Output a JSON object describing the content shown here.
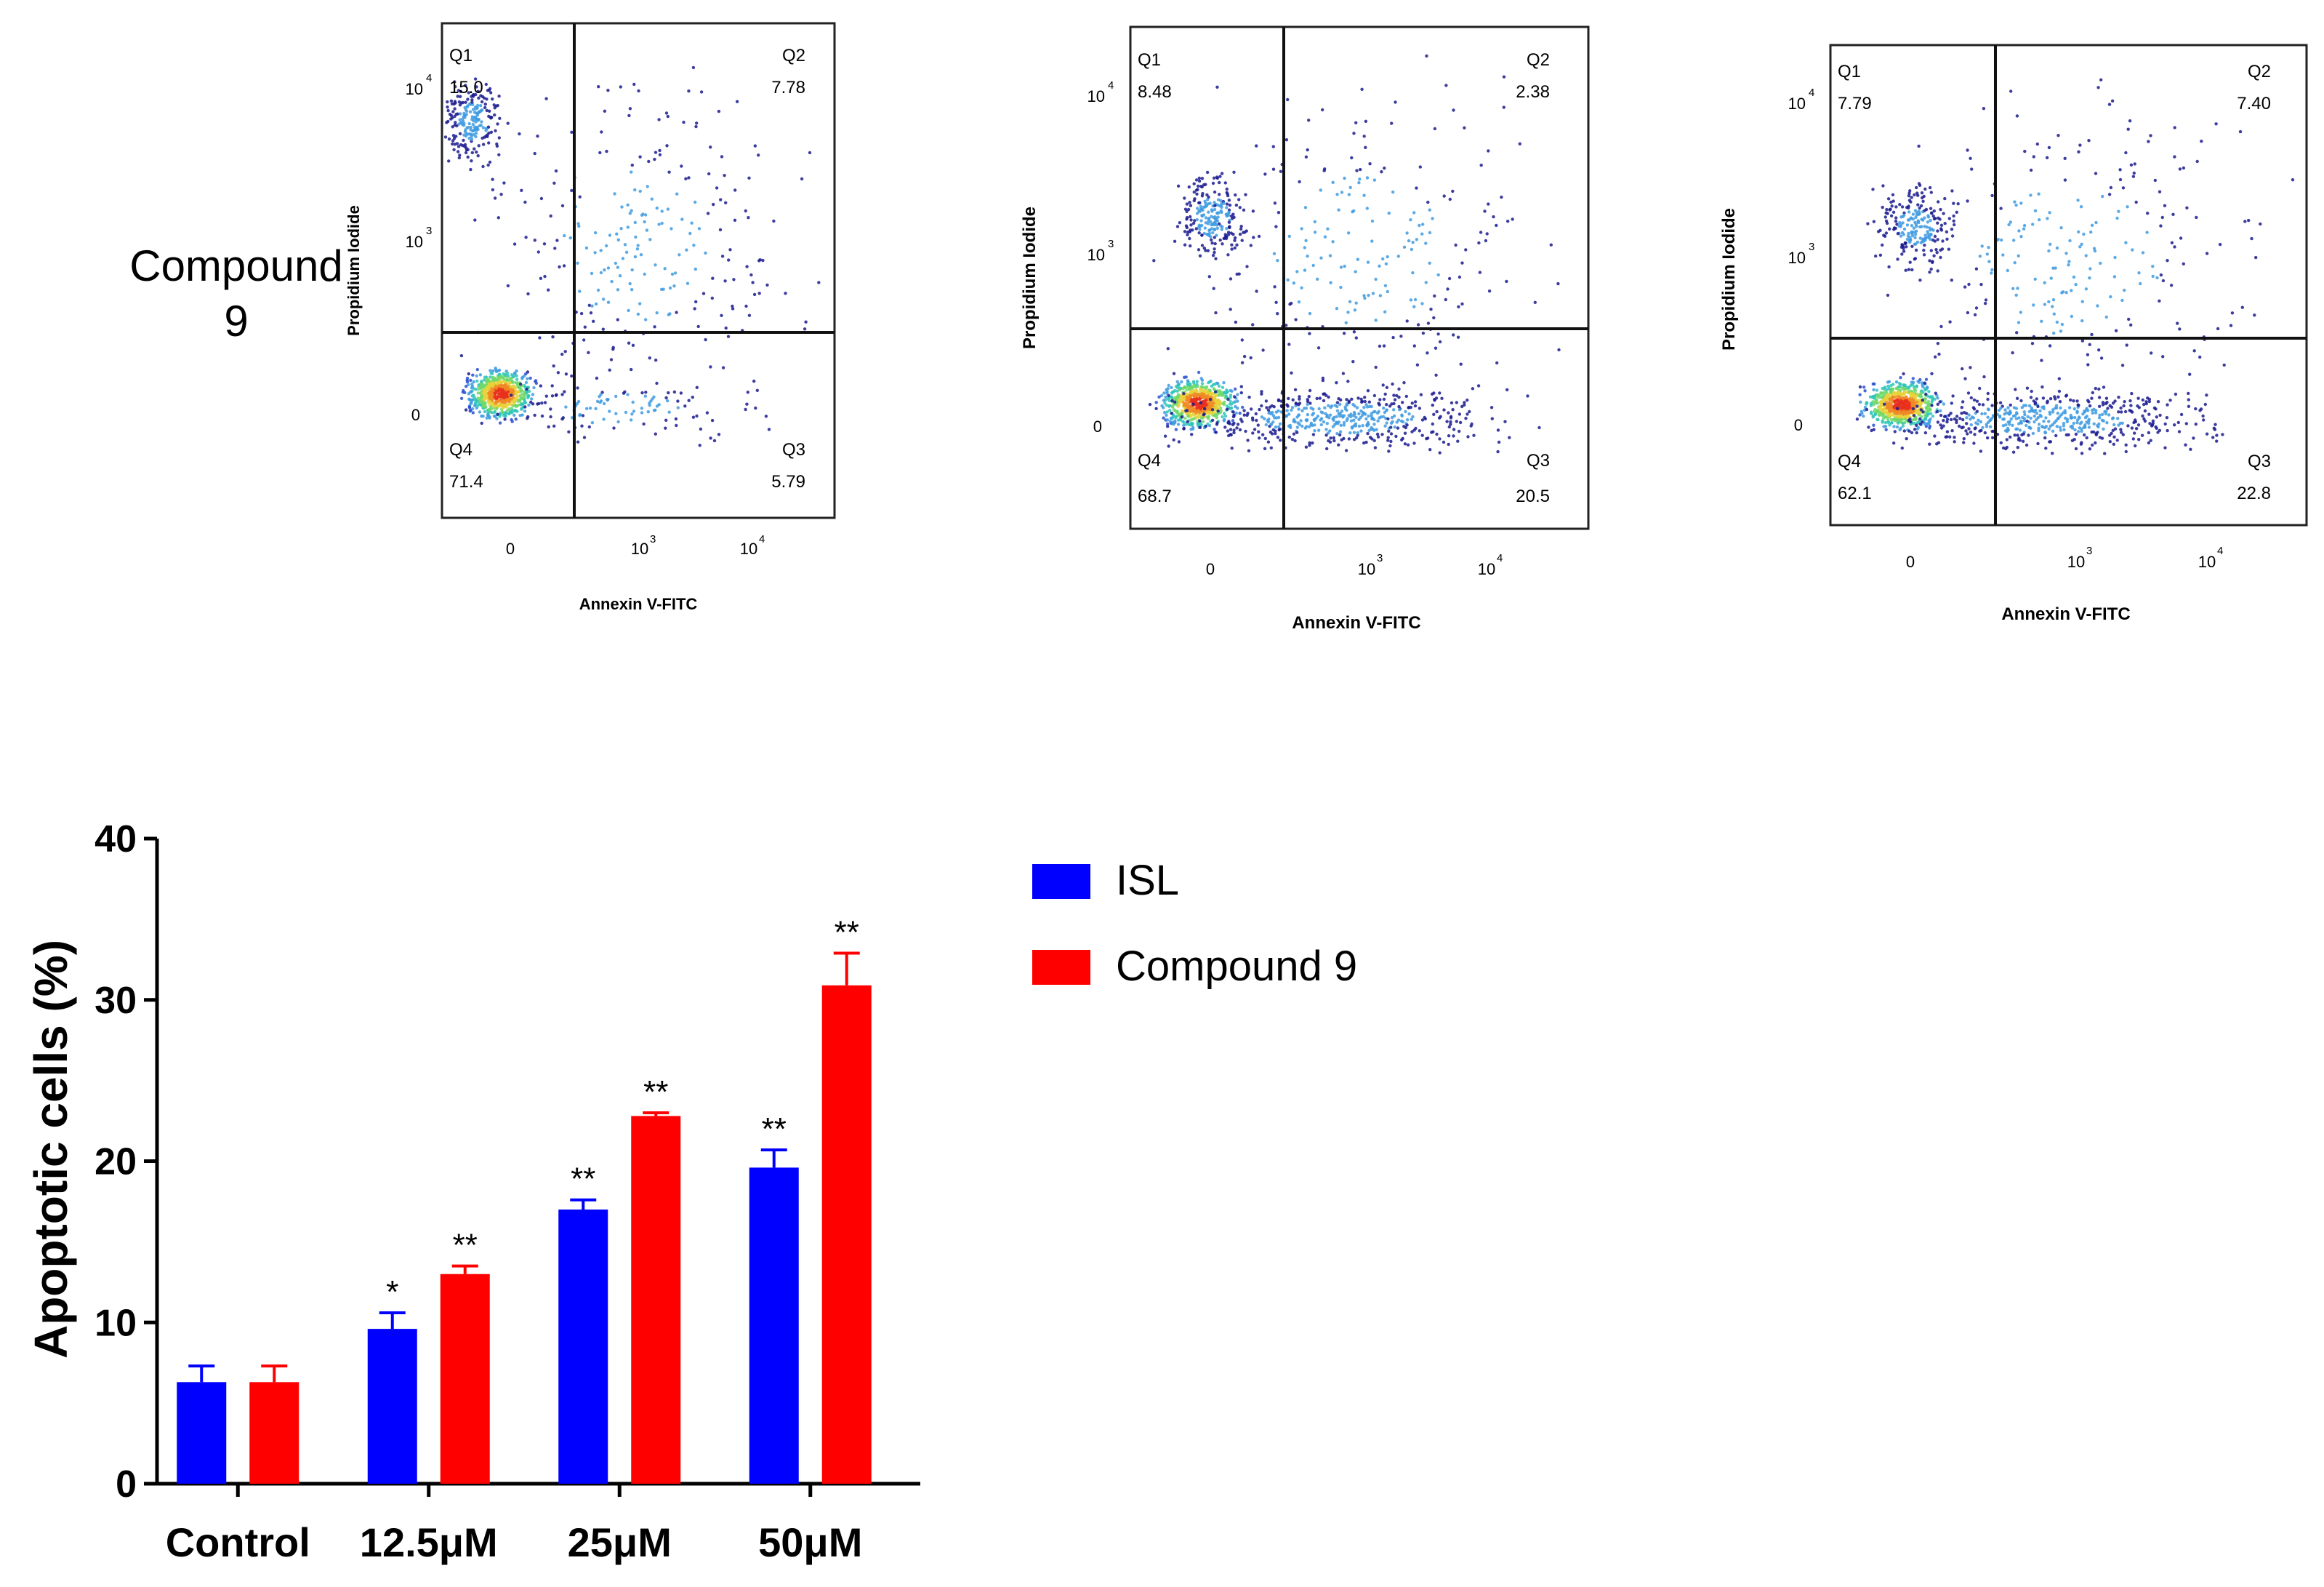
{
  "row_label": {
    "line1": "Compound",
    "line2": "9"
  },
  "flow_axes": {
    "xlabel": "Annexin V-FITC",
    "ylabel": "Propidium Iodide",
    "xticks": [
      "0",
      "10",
      "10"
    ],
    "xtick_exps": [
      "",
      "3",
      "4"
    ],
    "yticks": [
      "0",
      "10",
      "10"
    ],
    "ytick_exps": [
      "",
      "3",
      "4"
    ]
  },
  "flow_panels": [
    {
      "quadrants": [
        {
          "name": "Q1",
          "value": "15.0"
        },
        {
          "name": "Q2",
          "value": "7.78"
        },
        {
          "name": "Q3",
          "value": "5.79"
        },
        {
          "name": "Q4",
          "value": "71.4"
        }
      ]
    },
    {
      "quadrants": [
        {
          "name": "Q1",
          "value": "8.48"
        },
        {
          "name": "Q2",
          "value": "2.38"
        },
        {
          "name": "Q3",
          "value": "20.5"
        },
        {
          "name": "Q4",
          "value": "68.7"
        }
      ]
    },
    {
      "quadrants": [
        {
          "name": "Q1",
          "value": "7.79"
        },
        {
          "name": "Q2",
          "value": "7.40"
        },
        {
          "name": "Q3",
          "value": "22.8"
        },
        {
          "name": "Q4",
          "value": "62.1"
        }
      ]
    }
  ],
  "chart_data": {
    "type": "bar",
    "title": "",
    "xlabel": "",
    "ylabel": "Apoptotic cells (%)",
    "ylim": [
      0,
      40
    ],
    "yticks": [
      0,
      10,
      20,
      30,
      40
    ],
    "categories": [
      "Control",
      "12.5μM",
      "25μM",
      "50μM"
    ],
    "legend_position": "top-right",
    "series": [
      {
        "name": "ISL",
        "color": "#0000ff",
        "values": [
          6.3,
          9.6,
          17.0,
          19.6
        ],
        "errors": [
          1.0,
          1.0,
          0.6,
          1.1
        ],
        "significance": [
          "",
          "*",
          "**",
          "**"
        ]
      },
      {
        "name": "Compound 9",
        "color": "#ff0000",
        "values": [
          6.3,
          13.0,
          22.8,
          30.9
        ],
        "errors": [
          1.0,
          0.5,
          0.2,
          2.0
        ],
        "significance": [
          "",
          "**",
          "**",
          "**"
        ]
      }
    ]
  }
}
